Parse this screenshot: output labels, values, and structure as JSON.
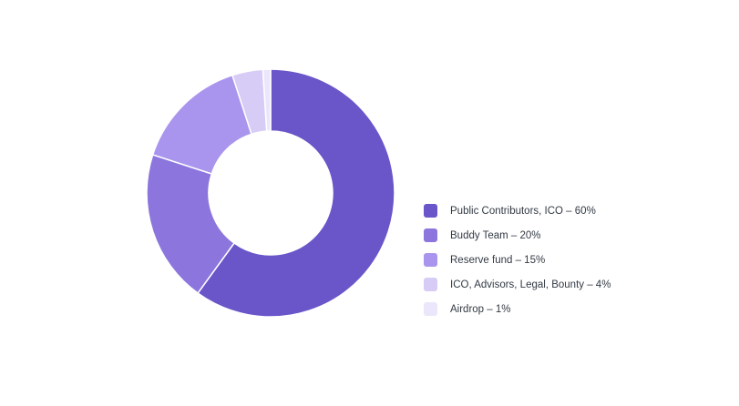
{
  "chart_data": {
    "type": "pie",
    "donut": true,
    "categories": [
      "Public Contributors, ICO",
      "Buddy Team",
      "Reserve fund",
      "ICO, Advisors, Legal, Bounty",
      "Airdrop"
    ],
    "values": [
      60,
      20,
      15,
      4,
      1
    ],
    "unit": "%",
    "colors": [
      "#6a55c9",
      "#8c76dd",
      "#a995ee",
      "#d7ccf6",
      "#ebe6fb"
    ],
    "legend_position": "right",
    "legend": [
      {
        "label": "Public Contributors, ICO – 60%",
        "color": "#6a55c9"
      },
      {
        "label": "Buddy Team – 20%",
        "color": "#8c76dd"
      },
      {
        "label": "Reserve fund – 15%",
        "color": "#a995ee"
      },
      {
        "label": "ICO, Advisors, Legal, Bounty – 4%",
        "color": "#d7ccf6"
      },
      {
        "label": "Airdrop – 1%",
        "color": "#ebe6fb"
      }
    ]
  }
}
